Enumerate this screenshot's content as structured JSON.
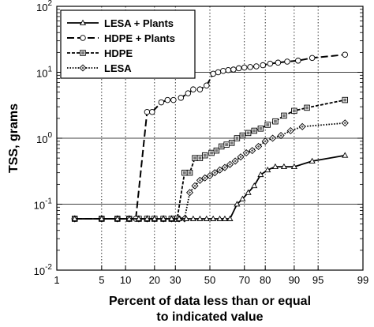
{
  "chart_data": {
    "type": "line",
    "xlabel_line1": "Percent of data less than or equal",
    "xlabel_line2": "to indicated value",
    "ylabel": "TSS, grams",
    "x_scale": "probability",
    "y_scale": "log",
    "xlim": [
      1,
      99
    ],
    "ylim": [
      0.01,
      100
    ],
    "x_ticks": [
      1,
      5,
      10,
      20,
      30,
      50,
      70,
      80,
      90,
      95,
      99
    ],
    "y_ticks": [
      0.01,
      0.1,
      1,
      10,
      100
    ],
    "grid": "horizontal at decades, dotted vertical at x ticks",
    "legend": "top-left",
    "series": [
      {
        "name": "LESA + Plants",
        "line": "solid",
        "marker": "triangle",
        "points": [
          [
            2,
            0.06
          ],
          [
            5,
            0.06
          ],
          [
            8,
            0.06
          ],
          [
            11,
            0.06
          ],
          [
            14,
            0.06
          ],
          [
            17,
            0.06
          ],
          [
            20,
            0.06
          ],
          [
            24,
            0.06
          ],
          [
            28,
            0.06
          ],
          [
            32,
            0.06
          ],
          [
            36,
            0.06
          ],
          [
            40,
            0.06
          ],
          [
            44,
            0.06
          ],
          [
            48,
            0.06
          ],
          [
            52,
            0.06
          ],
          [
            56,
            0.06
          ],
          [
            59,
            0.06
          ],
          [
            62,
            0.06
          ],
          [
            66,
            0.1
          ],
          [
            69,
            0.12
          ],
          [
            72,
            0.15
          ],
          [
            75,
            0.19
          ],
          [
            78,
            0.28
          ],
          [
            81,
            0.33
          ],
          [
            84,
            0.37
          ],
          [
            87,
            0.37
          ],
          [
            90,
            0.37
          ],
          [
            94,
            0.45
          ],
          [
            98,
            0.55
          ]
        ]
      },
      {
        "name": "HDPE + Plants",
        "line": "long-dash",
        "marker": "circle",
        "points": [
          [
            2,
            0.06
          ],
          [
            5,
            0.06
          ],
          [
            8,
            0.06
          ],
          [
            11,
            0.06
          ],
          [
            13,
            0.06
          ],
          [
            17,
            2.5
          ],
          [
            19,
            2.5
          ],
          [
            23,
            3.5
          ],
          [
            26,
            3.8
          ],
          [
            29,
            3.8
          ],
          [
            33,
            4.1
          ],
          [
            37,
            4.8
          ],
          [
            40,
            5.5
          ],
          [
            44,
            5.5
          ],
          [
            48,
            6.3
          ],
          [
            52,
            9.5
          ],
          [
            55,
            10
          ],
          [
            58,
            10.5
          ],
          [
            61,
            10.8
          ],
          [
            64,
            11
          ],
          [
            67,
            11.5
          ],
          [
            70,
            11.8
          ],
          [
            73,
            12
          ],
          [
            76,
            12.3
          ],
          [
            79,
            12.8
          ],
          [
            82,
            13.5
          ],
          [
            85,
            14
          ],
          [
            88,
            14.5
          ],
          [
            91,
            15
          ],
          [
            94,
            16.5
          ],
          [
            98,
            18.5
          ]
        ]
      },
      {
        "name": "HDPE",
        "line": "short-dash",
        "marker": "square",
        "points": [
          [
            2,
            0.06
          ],
          [
            5,
            0.06
          ],
          [
            8,
            0.06
          ],
          [
            11,
            0.06
          ],
          [
            14,
            0.06
          ],
          [
            17,
            0.06
          ],
          [
            20,
            0.06
          ],
          [
            24,
            0.06
          ],
          [
            28,
            0.06
          ],
          [
            31,
            0.06
          ],
          [
            35,
            0.3
          ],
          [
            38,
            0.3
          ],
          [
            41,
            0.5
          ],
          [
            44,
            0.5
          ],
          [
            47,
            0.55
          ],
          [
            51,
            0.6
          ],
          [
            54,
            0.65
          ],
          [
            57,
            0.75
          ],
          [
            60,
            0.8
          ],
          [
            63,
            0.85
          ],
          [
            66,
            1.0
          ],
          [
            69,
            1.1
          ],
          [
            72,
            1.2
          ],
          [
            75,
            1.3
          ],
          [
            78,
            1.4
          ],
          [
            81,
            1.6
          ],
          [
            84,
            1.8
          ],
          [
            87,
            2.2
          ],
          [
            90,
            2.6
          ],
          [
            93,
            2.9
          ],
          [
            98,
            3.8
          ]
        ]
      },
      {
        "name": "LESA",
        "line": "dotted",
        "marker": "diamond",
        "points": [
          [
            2,
            0.06
          ],
          [
            5,
            0.06
          ],
          [
            8,
            0.06
          ],
          [
            11,
            0.06
          ],
          [
            14,
            0.06
          ],
          [
            17,
            0.06
          ],
          [
            20,
            0.06
          ],
          [
            24,
            0.06
          ],
          [
            28,
            0.06
          ],
          [
            32,
            0.06
          ],
          [
            35,
            0.06
          ],
          [
            38,
            0.15
          ],
          [
            41,
            0.19
          ],
          [
            44,
            0.23
          ],
          [
            47,
            0.25
          ],
          [
            50,
            0.27
          ],
          [
            53,
            0.3
          ],
          [
            56,
            0.33
          ],
          [
            59,
            0.36
          ],
          [
            62,
            0.4
          ],
          [
            65,
            0.45
          ],
          [
            68,
            0.52
          ],
          [
            71,
            0.6
          ],
          [
            74,
            0.65
          ],
          [
            77,
            0.75
          ],
          [
            80,
            0.9
          ],
          [
            83,
            1.0
          ],
          [
            86,
            1.1
          ],
          [
            89,
            1.3
          ],
          [
            92,
            1.5
          ],
          [
            98,
            1.7
          ]
        ]
      }
    ]
  }
}
